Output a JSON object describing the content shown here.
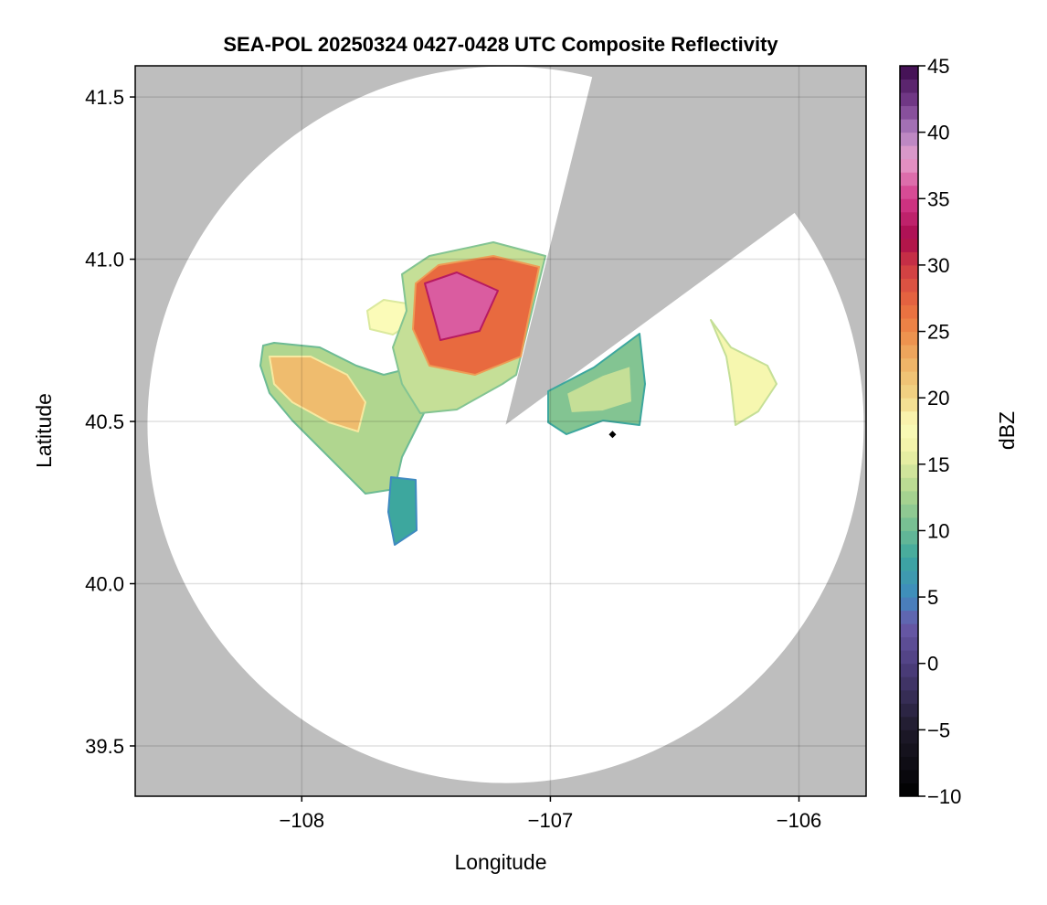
{
  "chart_data": {
    "type": "heatmap",
    "title": "SEA-POL 20250324 0427-0428 UTC Composite Reflectivity",
    "xlabel": "Longitude",
    "ylabel": "Latitude",
    "xlim": [
      -108.67,
      -105.73
    ],
    "ylim": [
      39.345,
      41.596
    ],
    "xticks": [
      -108,
      -107,
      -106
    ],
    "xtick_labels": [
      "−108",
      "−107",
      "−106"
    ],
    "yticks": [
      39.5,
      40.0,
      40.5,
      41.0,
      41.5
    ],
    "ytick_labels": [
      "39.5",
      "40.0",
      "40.5",
      "41.0",
      "41.5"
    ],
    "grid": true,
    "background_color": "#bebebe",
    "radar_center": {
      "lon": -107.18,
      "lat": 40.49
    },
    "marker": {
      "lon": -106.75,
      "lat": 40.46,
      "shape": "diamond",
      "color": "#000000"
    },
    "colorbar": {
      "label": "dBZ",
      "range": [
        -10,
        45
      ],
      "step": 1,
      "ticks": [
        -10,
        -5,
        0,
        5,
        10,
        15,
        20,
        25,
        30,
        35,
        40,
        45
      ],
      "tick_labels": [
        "−10",
        "−5",
        "0",
        "5",
        "10",
        "15",
        "20",
        "25",
        "30",
        "35",
        "40",
        "45"
      ],
      "position": "right",
      "color_stops": [
        [
          -10,
          "#000000"
        ],
        [
          -5,
          "#1e1a2a"
        ],
        [
          0,
          "#4e3f80"
        ],
        [
          3,
          "#6a5aaa"
        ],
        [
          5,
          "#3f8ac0"
        ],
        [
          8,
          "#3da79e"
        ],
        [
          10,
          "#6dbb94"
        ],
        [
          13,
          "#b0d68f"
        ],
        [
          16,
          "#f0f2a6"
        ],
        [
          18,
          "#fbfbb8"
        ],
        [
          20,
          "#f2d787"
        ],
        [
          23,
          "#eeae62"
        ],
        [
          25,
          "#ed8a48"
        ],
        [
          27,
          "#e86a3f"
        ],
        [
          30,
          "#cf3a44"
        ],
        [
          32,
          "#a80a4c"
        ],
        [
          35,
          "#d43a8a"
        ],
        [
          38,
          "#e6a0cc"
        ],
        [
          40,
          "#b080c0"
        ],
        [
          42,
          "#7a4090"
        ],
        [
          45,
          "#3c0a4c"
        ]
      ]
    },
    "echo_regions": [
      {
        "name": "western-cell",
        "dbz": 13
      },
      {
        "name": "western-cell-core",
        "dbz": 22
      },
      {
        "name": "small-cell",
        "dbz": 18
      },
      {
        "name": "main-cell",
        "dbz": 14
      },
      {
        "name": "main-cell-core",
        "dbz": 27
      },
      {
        "name": "main-cell-peak",
        "dbz": 36
      },
      {
        "name": "east-cell",
        "dbz": 11
      },
      {
        "name": "east-cell-core",
        "dbz": 14
      },
      {
        "name": "far-east-cell",
        "dbz": 17
      },
      {
        "name": "southern-specks",
        "dbz": 8
      }
    ]
  }
}
